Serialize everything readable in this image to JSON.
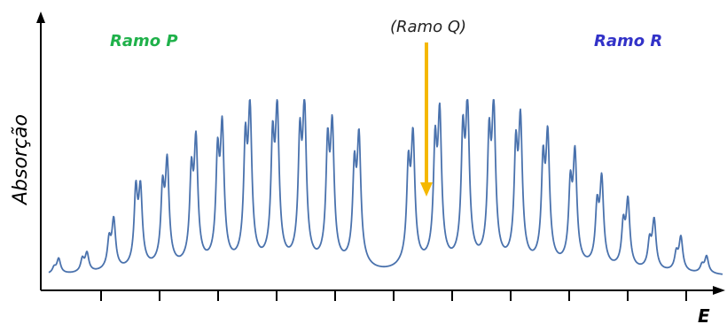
{
  "chart_data": {
    "type": "line",
    "ylabel": "Absorção",
    "xlabel": "E",
    "annotations": {
      "branch_p": "Ramo P",
      "branch_r": "Ramo R",
      "branch_q": "(Ramo Q)"
    },
    "colors": {
      "line": "#4a72ad",
      "branch_p": "#1fb14a",
      "branch_r": "#3232c8",
      "q_arrow": "#f5b800",
      "axis": "#000000"
    },
    "x_tick_count": 12,
    "grid": false,
    "legend": "none",
    "ylim": [
      0,
      1
    ],
    "baseline": 0.03,
    "series": [
      {
        "peaks": [
          {
            "x": 0.02,
            "doublet": [
              0.06,
              0.11
            ]
          },
          {
            "x": 0.075,
            "doublet": [
              0.1,
              0.13
            ]
          },
          {
            "x": 0.127,
            "doublet": [
              0.18,
              0.29
            ]
          },
          {
            "x": 0.179,
            "doublet": [
              0.44,
              0.43
            ]
          },
          {
            "x": 0.231,
            "doublet": [
              0.42,
              0.56
            ]
          },
          {
            "x": 0.287,
            "doublet": [
              0.49,
              0.66
            ]
          },
          {
            "x": 0.338,
            "doublet": [
              0.58,
              0.72
            ]
          },
          {
            "x": 0.392,
            "doublet": [
              0.64,
              0.8
            ]
          },
          {
            "x": 0.445,
            "doublet": [
              0.65,
              0.8
            ]
          },
          {
            "x": 0.498,
            "doublet": [
              0.66,
              0.82
            ]
          },
          {
            "x": 0.552,
            "doublet": [
              0.64,
              0.72
            ]
          },
          {
            "x": 0.604,
            "doublet": [
              0.52,
              0.68
            ]
          },
          {
            "x": 0.709,
            "doublet": [
              0.53,
              0.68
            ]
          },
          {
            "x": 0.761,
            "doublet": [
              0.63,
              0.78
            ]
          },
          {
            "x": 0.815,
            "doublet": [
              0.68,
              0.82
            ]
          },
          {
            "x": 0.866,
            "doublet": [
              0.66,
              0.81
            ]
          },
          {
            "x": 0.918,
            "doublet": [
              0.61,
              0.75
            ]
          },
          {
            "x": 0.971,
            "doublet": [
              0.55,
              0.68
            ]
          },
          {
            "x": 1.024,
            "doublet": [
              0.43,
              0.6
            ]
          },
          {
            "x": 1.076,
            "doublet": [
              0.33,
              0.48
            ]
          },
          {
            "x": 1.127,
            "doublet": [
              0.25,
              0.38
            ]
          },
          {
            "x": 1.178,
            "doublet": [
              0.17,
              0.29
            ]
          },
          {
            "x": 1.23,
            "doublet": [
              0.12,
              0.21
            ]
          },
          {
            "x": 1.28,
            "doublet": [
              0.07,
              0.12
            ]
          }
        ]
      }
    ]
  }
}
